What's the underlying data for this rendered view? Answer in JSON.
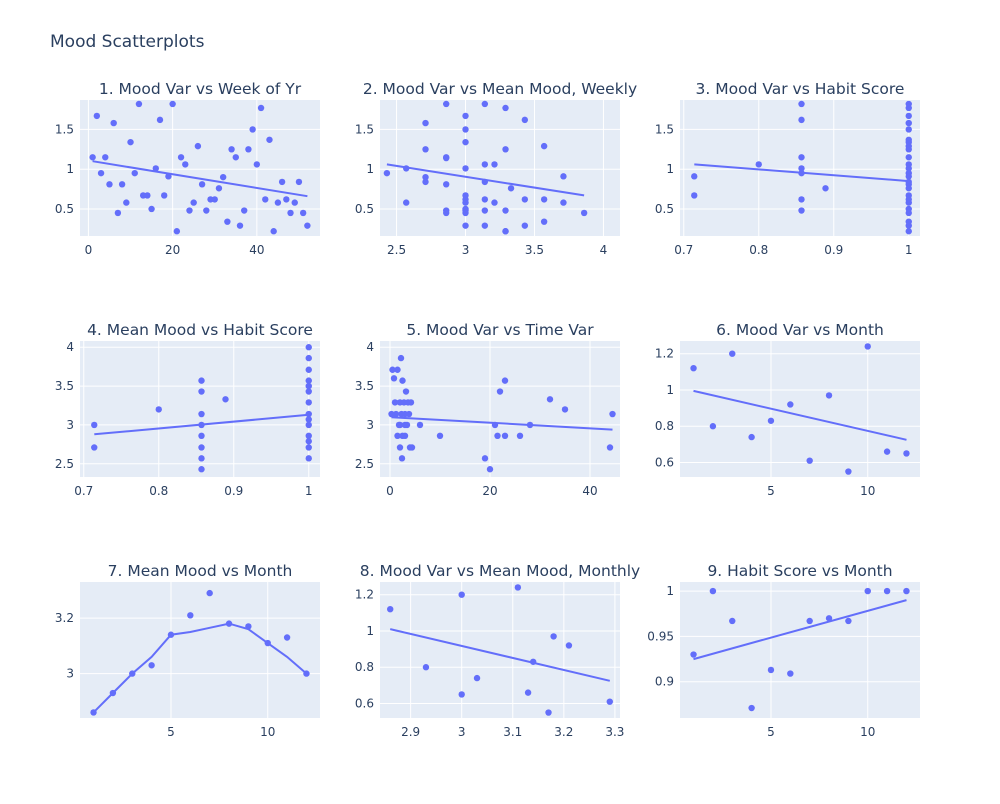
{
  "page_title": "Mood Scatterplots",
  "colors": {
    "marker": "#636efa",
    "line": "#636efa",
    "plot_bg": "#e5ecf6",
    "grid": "#ffffff",
    "text": "#2a3f5f",
    "tick_text": "#2a3f5f"
  },
  "chart_data": [
    {
      "type": "scatter",
      "title": "1. Mood Var vs Week of Yr",
      "xlim": [
        -2,
        55
      ],
      "ylim": [
        0.16,
        1.87
      ],
      "xticks": [
        0,
        20,
        40
      ],
      "xtick_labels": [
        "0",
        "20",
        "40"
      ],
      "yticks": [
        0.5,
        1,
        1.5
      ],
      "ytick_labels": [
        "0.5",
        "1",
        "1.5"
      ],
      "points": [
        [
          1,
          1.15
        ],
        [
          2,
          1.67
        ],
        [
          3,
          0.95
        ],
        [
          4,
          1.15
        ],
        [
          5,
          0.81
        ],
        [
          6,
          1.58
        ],
        [
          7,
          0.45
        ],
        [
          8,
          0.81
        ],
        [
          9,
          0.58
        ],
        [
          10,
          1.34
        ],
        [
          11,
          0.95
        ],
        [
          12,
          1.82
        ],
        [
          13,
          0.67
        ],
        [
          14,
          0.67
        ],
        [
          15,
          0.5
        ],
        [
          16,
          1.01
        ],
        [
          17,
          1.62
        ],
        [
          18,
          0.67
        ],
        [
          19,
          0.91
        ],
        [
          20,
          1.82
        ],
        [
          21,
          0.22
        ],
        [
          22,
          1.15
        ],
        [
          23,
          1.06
        ],
        [
          24,
          0.48
        ],
        [
          25,
          0.58
        ],
        [
          26,
          1.29
        ],
        [
          27,
          0.81
        ],
        [
          28,
          0.48
        ],
        [
          29,
          0.62
        ],
        [
          30,
          0.62
        ],
        [
          31,
          0.76
        ],
        [
          32,
          0.9
        ],
        [
          33,
          0.34
        ],
        [
          34,
          1.25
        ],
        [
          35,
          1.15
        ],
        [
          36,
          0.29
        ],
        [
          37,
          0.48
        ],
        [
          38,
          1.25
        ],
        [
          39,
          1.5
        ],
        [
          40,
          1.06
        ],
        [
          41,
          1.77
        ],
        [
          42,
          0.62
        ],
        [
          43,
          1.37
        ],
        [
          44,
          0.22
        ],
        [
          45,
          0.58
        ],
        [
          46,
          0.84
        ],
        [
          47,
          0.62
        ],
        [
          48,
          0.45
        ],
        [
          49,
          0.58
        ],
        [
          50,
          0.84
        ],
        [
          51,
          0.45
        ],
        [
          52,
          0.29
        ]
      ],
      "trendline": [
        [
          1,
          1.1
        ],
        [
          52,
          0.66
        ]
      ]
    },
    {
      "type": "scatter",
      "title": "2. Mood Var vs Mean Mood, Weekly",
      "xlim": [
        2.38,
        4.12
      ],
      "ylim": [
        0.16,
        1.87
      ],
      "xticks": [
        2.5,
        3,
        3.5,
        4
      ],
      "xtick_labels": [
        "2.5",
        "3",
        "3.5",
        "4"
      ],
      "yticks": [
        0.5,
        1,
        1.5
      ],
      "ytick_labels": [
        "0.5",
        "1",
        "1.5"
      ],
      "points": [
        [
          2.43,
          0.95
        ],
        [
          2.57,
          1.01
        ],
        [
          2.57,
          0.58
        ],
        [
          2.71,
          1.58
        ],
        [
          2.71,
          1.25
        ],
        [
          2.71,
          0.9
        ],
        [
          2.71,
          0.84
        ],
        [
          2.86,
          1.82
        ],
        [
          2.86,
          1.15
        ],
        [
          2.86,
          1.14
        ],
        [
          2.86,
          0.81
        ],
        [
          2.86,
          0.48
        ],
        [
          2.86,
          0.45
        ],
        [
          3,
          1.67
        ],
        [
          3,
          1.5
        ],
        [
          3,
          1.34
        ],
        [
          3,
          1.01
        ],
        [
          3,
          0.67
        ],
        [
          3,
          0.62
        ],
        [
          3,
          0.58
        ],
        [
          3,
          0.5
        ],
        [
          3,
          0.48
        ],
        [
          3,
          0.45
        ],
        [
          3,
          0.29
        ],
        [
          3.14,
          1.82
        ],
        [
          3.14,
          1.06
        ],
        [
          3.14,
          0.84
        ],
        [
          3.14,
          0.62
        ],
        [
          3.14,
          0.48
        ],
        [
          3.14,
          0.29
        ],
        [
          3.21,
          1.06
        ],
        [
          3.21,
          0.58
        ],
        [
          3.29,
          1.77
        ],
        [
          3.29,
          1.25
        ],
        [
          3.29,
          0.48
        ],
        [
          3.29,
          0.22
        ],
        [
          3.29,
          0.22
        ],
        [
          3.33,
          0.76
        ],
        [
          3.43,
          1.62
        ],
        [
          3.43,
          0.62
        ],
        [
          3.43,
          0.29
        ],
        [
          3.57,
          1.29
        ],
        [
          3.57,
          0.62
        ],
        [
          3.57,
          0.34
        ],
        [
          3.71,
          0.91
        ],
        [
          3.71,
          0.58
        ],
        [
          3.86,
          0.45
        ]
      ],
      "trendline": [
        [
          2.43,
          1.06
        ],
        [
          3.86,
          0.67
        ]
      ]
    },
    {
      "type": "scatter",
      "title": "3. Mood Var vs Habit Score",
      "xlim": [
        0.695,
        1.015
      ],
      "ylim": [
        0.16,
        1.87
      ],
      "xticks": [
        0.7,
        0.8,
        0.9,
        1
      ],
      "xtick_labels": [
        "0.7",
        "0.8",
        "0.9",
        "1"
      ],
      "yticks": [
        0.5,
        1,
        1.5
      ],
      "ytick_labels": [
        "0.5",
        "1",
        "1.5"
      ],
      "points": [
        [
          0.714,
          0.91
        ],
        [
          0.714,
          0.67
        ],
        [
          0.8,
          1.06
        ],
        [
          0.857,
          1.82
        ],
        [
          0.857,
          1.62
        ],
        [
          0.857,
          1.15
        ],
        [
          0.857,
          1.01
        ],
        [
          0.857,
          0.95
        ],
        [
          0.857,
          0.62
        ],
        [
          0.857,
          0.48
        ],
        [
          0.889,
          0.76
        ],
        [
          1,
          1.82
        ],
        [
          1,
          1.77
        ],
        [
          1,
          1.67
        ],
        [
          1,
          1.58
        ],
        [
          1,
          1.5
        ],
        [
          1,
          1.37
        ],
        [
          1,
          1.34
        ],
        [
          1,
          1.29
        ],
        [
          1,
          1.25
        ],
        [
          1,
          1.15
        ],
        [
          1,
          1.06
        ],
        [
          1,
          1.01
        ],
        [
          1,
          0.95
        ],
        [
          1,
          0.91
        ],
        [
          1,
          0.84
        ],
        [
          1,
          0.81
        ],
        [
          1,
          0.76
        ],
        [
          1,
          0.67
        ],
        [
          1,
          0.62
        ],
        [
          1,
          0.58
        ],
        [
          1,
          0.5
        ],
        [
          1,
          0.45
        ],
        [
          1,
          0.34
        ],
        [
          1,
          0.29
        ],
        [
          1,
          0.22
        ]
      ],
      "trendline": [
        [
          0.714,
          1.06
        ],
        [
          1,
          0.85
        ]
      ]
    },
    {
      "type": "scatter",
      "title": "4. Mean Mood vs Habit Score",
      "xlim": [
        0.695,
        1.015
      ],
      "ylim": [
        2.33,
        4.08
      ],
      "xticks": [
        0.7,
        0.8,
        0.9,
        1
      ],
      "xtick_labels": [
        "0.7",
        "0.8",
        "0.9",
        "1"
      ],
      "yticks": [
        2.5,
        3,
        3.5,
        4
      ],
      "ytick_labels": [
        "2.5",
        "3",
        "3.5",
        "4"
      ],
      "points": [
        [
          0.714,
          3
        ],
        [
          0.714,
          2.71
        ],
        [
          0.8,
          3.2
        ],
        [
          0.857,
          3.57
        ],
        [
          0.857,
          3.43
        ],
        [
          0.857,
          3.14
        ],
        [
          0.857,
          3
        ],
        [
          0.857,
          2.86
        ],
        [
          0.857,
          2.71
        ],
        [
          0.857,
          2.57
        ],
        [
          0.857,
          2.43
        ],
        [
          0.889,
          3.33
        ],
        [
          1,
          4
        ],
        [
          1,
          3.86
        ],
        [
          1,
          3.71
        ],
        [
          1,
          3.57
        ],
        [
          1,
          3.5
        ],
        [
          1,
          3.43
        ],
        [
          1,
          3.29
        ],
        [
          1,
          3.14
        ],
        [
          1,
          3.07
        ],
        [
          1,
          3
        ],
        [
          1,
          2.86
        ],
        [
          1,
          2.79
        ],
        [
          1,
          2.71
        ],
        [
          1,
          2.57
        ]
      ],
      "trendline": [
        [
          0.714,
          2.88
        ],
        [
          1,
          3.13
        ]
      ]
    },
    {
      "type": "scatter",
      "title": "5. Mood Var vs Time Var",
      "xlim": [
        -2,
        46
      ],
      "ylim": [
        2.33,
        4.08
      ],
      "xticks": [
        0,
        20,
        40
      ],
      "xtick_labels": [
        "0",
        "20",
        "40"
      ],
      "yticks": [
        2.5,
        3,
        3.5,
        4
      ],
      "ytick_labels": [
        "2.5",
        "3",
        "3.5",
        "4"
      ],
      "points": [
        [
          0.3,
          3.14
        ],
        [
          0.5,
          3.71
        ],
        [
          0.8,
          3.6
        ],
        [
          1,
          3.29
        ],
        [
          1.2,
          3.14
        ],
        [
          1.5,
          3.71
        ],
        [
          1.5,
          2.86
        ],
        [
          1.8,
          3
        ],
        [
          2,
          3.29
        ],
        [
          2,
          3
        ],
        [
          2,
          2.71
        ],
        [
          2.2,
          3.86
        ],
        [
          2.3,
          3.14
        ],
        [
          2.4,
          2.57
        ],
        [
          2.5,
          3.57
        ],
        [
          2.5,
          2.86
        ],
        [
          2.8,
          3.29
        ],
        [
          3,
          3.14
        ],
        [
          3,
          3
        ],
        [
          3,
          2.86
        ],
        [
          3.2,
          3.43
        ],
        [
          3.4,
          3
        ],
        [
          3.6,
          3.29
        ],
        [
          3.8,
          3.14
        ],
        [
          4,
          2.71
        ],
        [
          4.2,
          3.29
        ],
        [
          4.4,
          2.71
        ],
        [
          6,
          3
        ],
        [
          10,
          2.86
        ],
        [
          19,
          2.57
        ],
        [
          20,
          2.43
        ],
        [
          21,
          3
        ],
        [
          21.5,
          2.86
        ],
        [
          22,
          3.43
        ],
        [
          23,
          3.57
        ],
        [
          23,
          2.86
        ],
        [
          26,
          2.86
        ],
        [
          28,
          3
        ],
        [
          32,
          3.33
        ],
        [
          35,
          3.2
        ],
        [
          44,
          2.71
        ],
        [
          44.5,
          3.14
        ]
      ],
      "trendline": [
        [
          0.3,
          3.1
        ],
        [
          44.5,
          2.94
        ]
      ]
    },
    {
      "type": "scatter",
      "title": "6. Mood Var vs Month",
      "xlim": [
        0.3,
        12.7
      ],
      "ylim": [
        0.52,
        1.27
      ],
      "xticks": [
        5,
        10
      ],
      "xtick_labels": [
        "5",
        "10"
      ],
      "yticks": [
        0.6,
        0.8,
        1,
        1.2
      ],
      "ytick_labels": [
        "0.6",
        "0.8",
        "1",
        "1.2"
      ],
      "points": [
        [
          1,
          1.12
        ],
        [
          2,
          0.8
        ],
        [
          3,
          1.2
        ],
        [
          4,
          0.74
        ],
        [
          5,
          0.83
        ],
        [
          6,
          0.92
        ],
        [
          7,
          0.61
        ],
        [
          8,
          0.97
        ],
        [
          9,
          0.55
        ],
        [
          10,
          1.24
        ],
        [
          11,
          0.66
        ],
        [
          12,
          0.65
        ]
      ],
      "trendline": [
        [
          1,
          0.995
        ],
        [
          12,
          0.725
        ]
      ]
    },
    {
      "type": "scatter",
      "title": "7. Mean Mood vs Month",
      "xlim": [
        0.3,
        12.7
      ],
      "ylim": [
        2.84,
        3.33
      ],
      "xticks": [
        5,
        10
      ],
      "xtick_labels": [
        "5",
        "10"
      ],
      "yticks": [
        3,
        3.2
      ],
      "ytick_labels": [
        "3",
        "3.2"
      ],
      "points": [
        [
          1,
          2.86
        ],
        [
          2,
          2.93
        ],
        [
          3,
          3
        ],
        [
          4,
          3.03
        ],
        [
          5,
          3.14
        ],
        [
          6,
          3.21
        ],
        [
          7,
          3.29
        ],
        [
          8,
          3.18
        ],
        [
          9,
          3.17
        ],
        [
          10,
          3.11
        ],
        [
          11,
          3.13
        ],
        [
          12,
          3
        ]
      ],
      "trendline": [
        [
          1,
          2.86
        ],
        [
          2,
          2.93
        ],
        [
          3,
          3
        ],
        [
          4,
          3.06
        ],
        [
          5,
          3.14
        ],
        [
          6,
          3.15
        ],
        [
          7,
          3.165
        ],
        [
          8,
          3.18
        ],
        [
          9,
          3.16
        ],
        [
          10,
          3.11
        ],
        [
          11,
          3.06
        ],
        [
          12,
          3
        ]
      ]
    },
    {
      "type": "scatter",
      "title": "8. Mood Var vs Mean Mood, Monthly",
      "xlim": [
        2.84,
        3.31
      ],
      "ylim": [
        0.52,
        1.27
      ],
      "xticks": [
        2.9,
        3,
        3.1,
        3.2,
        3.3
      ],
      "xtick_labels": [
        "2.9",
        "3",
        "3.1",
        "3.2",
        "3.3"
      ],
      "yticks": [
        0.6,
        0.8,
        1,
        1.2
      ],
      "ytick_labels": [
        "0.6",
        "0.8",
        "1",
        "1.2"
      ],
      "points": [
        [
          2.86,
          1.12
        ],
        [
          2.93,
          0.8
        ],
        [
          3,
          1.2
        ],
        [
          3,
          0.65
        ],
        [
          3.03,
          0.74
        ],
        [
          3.11,
          1.24
        ],
        [
          3.13,
          0.66
        ],
        [
          3.14,
          0.83
        ],
        [
          3.17,
          0.55
        ],
        [
          3.18,
          0.97
        ],
        [
          3.21,
          0.92
        ],
        [
          3.29,
          0.61
        ]
      ],
      "trendline": [
        [
          2.86,
          1.01
        ],
        [
          3.29,
          0.725
        ]
      ]
    },
    {
      "type": "scatter",
      "title": "9. Habit Score vs Month",
      "xlim": [
        0.3,
        12.7
      ],
      "ylim": [
        0.86,
        1.01
      ],
      "xticks": [
        5,
        10
      ],
      "xtick_labels": [
        "5",
        "10"
      ],
      "yticks": [
        0.9,
        0.95,
        1
      ],
      "ytick_labels": [
        "0.9",
        "0.95",
        "1"
      ],
      "points": [
        [
          1,
          0.93
        ],
        [
          2,
          1
        ],
        [
          3,
          0.967
        ],
        [
          4,
          0.871
        ],
        [
          5,
          0.913
        ],
        [
          6,
          0.909
        ],
        [
          7,
          0.967
        ],
        [
          8,
          0.97
        ],
        [
          9,
          0.967
        ],
        [
          10,
          1
        ],
        [
          11,
          1
        ],
        [
          12,
          1
        ]
      ],
      "trendline": [
        [
          1,
          0.925
        ],
        [
          12,
          0.99
        ]
      ]
    }
  ]
}
